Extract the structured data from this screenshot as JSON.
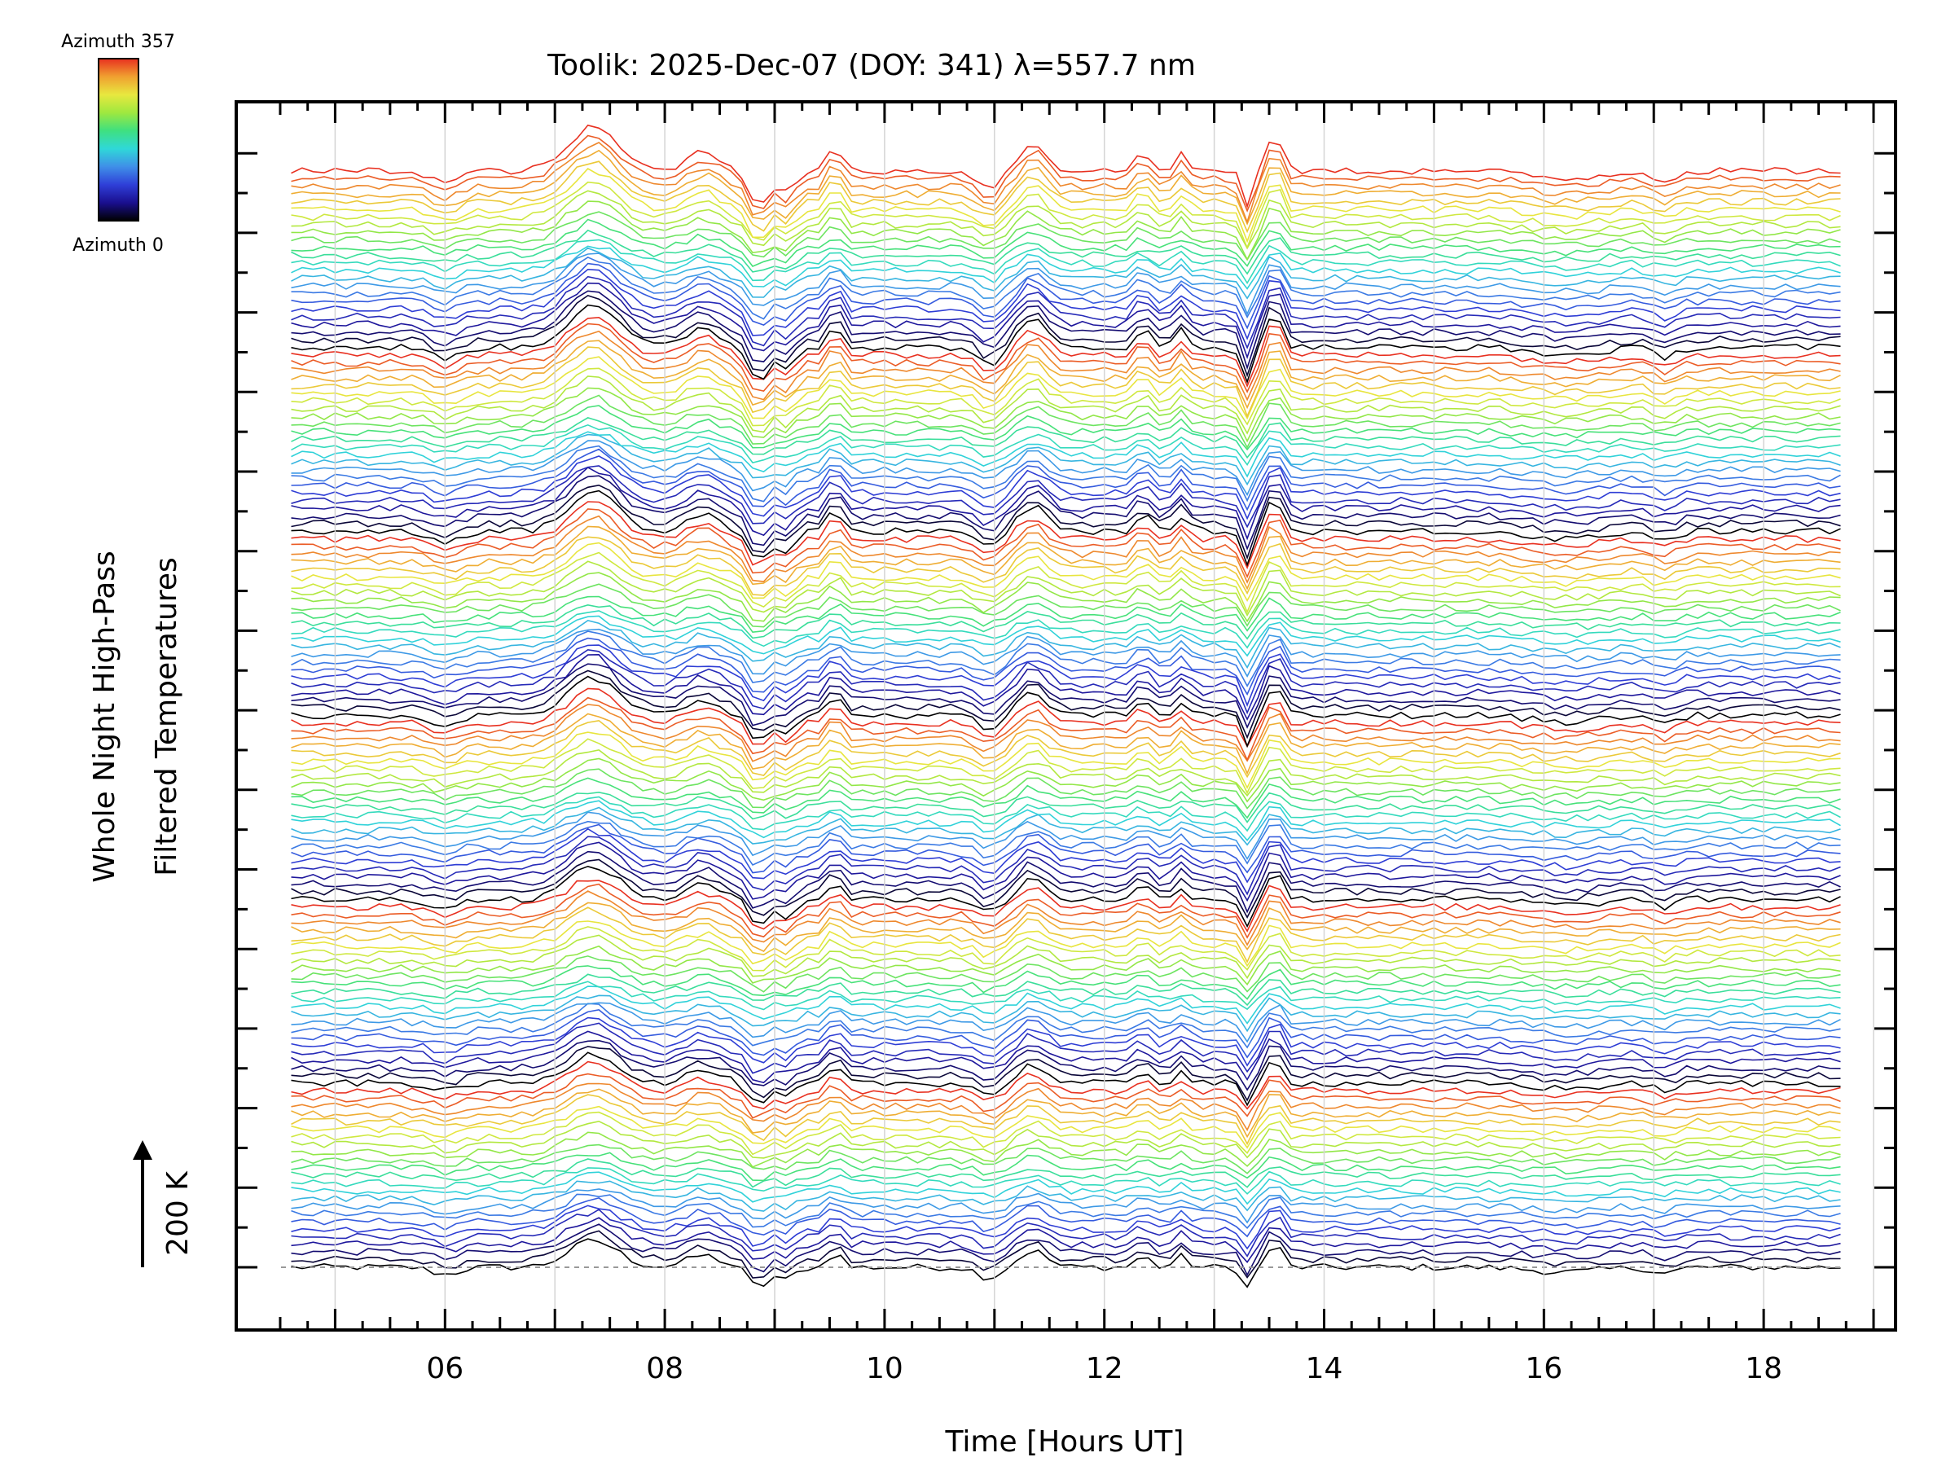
{
  "chart_data": {
    "type": "line",
    "title": "Toolik: 2025-Dec-07 (DOY: 341) λ=557.7 nm",
    "xlabel": "Time [Hours UT]",
    "ylabel_line1": "Whole Night High-Pass",
    "ylabel_line2": "Filtered Temperatures",
    "xlim": [
      4.1,
      19.2
    ],
    "x_ticks": [
      6,
      8,
      10,
      12,
      14,
      16,
      18
    ],
    "x_tick_labels": [
      "06",
      "08",
      "10",
      "12",
      "14",
      "16",
      "18"
    ],
    "x_range_data": [
      4.6,
      18.7
    ],
    "scale_bar_label": "200 K",
    "colorbar": {
      "top_label": "Azimuth 357",
      "bottom_label": "Azimuth 0",
      "colors": [
        "#000000",
        "#1a0f8f",
        "#2f3fd8",
        "#3f8fe8",
        "#2fd8d8",
        "#3fe07f",
        "#9fe83f",
        "#e8e83f",
        "#f0a030",
        "#e83020"
      ]
    },
    "stack": {
      "rings": 6,
      "traces_per_ring_approx": 24,
      "description_colors": "each ring cycles azimuth 0 (black/blue) through 357 (red) toward top"
    },
    "events": {
      "peaks_hours": [
        7.35,
        8.35,
        9.55,
        11.35,
        12.35,
        12.7,
        13.55
      ],
      "dips_hours": [
        8.85,
        9.1,
        10.95,
        13.3
      ]
    }
  }
}
